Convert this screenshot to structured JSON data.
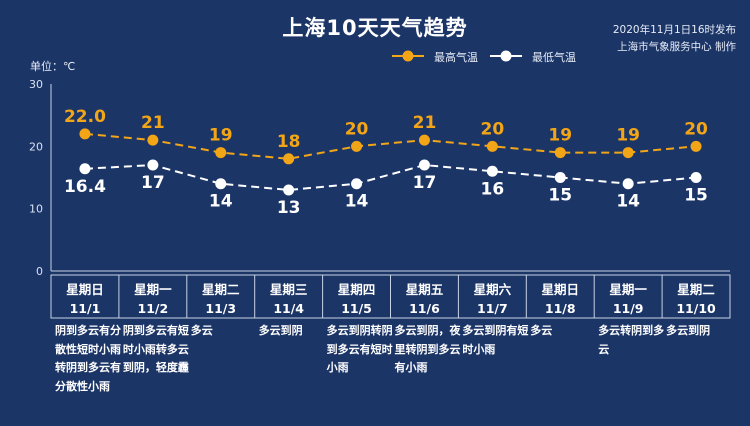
{
  "header": {
    "title": "上海10天天气趋势",
    "publish_line1": "2020年11月1日16时发布",
    "publish_line2": "上海市气象服务中心 制作"
  },
  "unit_label": "单位：℃",
  "legend": {
    "high": "最高气温",
    "low": "最低气温"
  },
  "colors": {
    "background": "#1c3567",
    "high": "#f2a516",
    "low": "#ffffff"
  },
  "chart_data": {
    "type": "line",
    "title": "上海10天天气趋势",
    "ylabel": "单位：℃",
    "ylim": [
      0,
      30
    ],
    "yticks": [
      "0",
      "10",
      "20",
      "30"
    ],
    "categories": [
      "11/1",
      "11/2",
      "11/3",
      "11/4",
      "11/5",
      "11/6",
      "11/7",
      "11/8",
      "11/9",
      "11/10"
    ],
    "weekdays": [
      "星期日",
      "星期一",
      "星期二",
      "星期三",
      "星期四",
      "星期五",
      "星期六",
      "星期日",
      "星期一",
      "星期二"
    ],
    "series": [
      {
        "name": "最高气温",
        "values": [
          22,
          21,
          19,
          18,
          20,
          21,
          20,
          19,
          19,
          20
        ],
        "labels": [
          "22.0",
          "21",
          "19",
          "18",
          "20",
          "21",
          "20",
          "19",
          "19",
          "20"
        ]
      },
      {
        "name": "最低气温",
        "values": [
          16.4,
          17,
          14,
          13,
          14,
          17,
          16,
          15,
          14,
          15
        ],
        "labels": [
          "16.4",
          "17",
          "14",
          "13",
          "14",
          "17",
          "16",
          "15",
          "14",
          "15"
        ]
      }
    ],
    "descriptions": [
      "阴到多云有分散性短时小雨转阴到多云有分散性小雨",
      "阴到多云有短时小雨转多云到阴，轻度霾",
      "多云",
      "多云到阴",
      "多云到阴转阴到多云有短时小雨",
      "多云到阴，夜里转阴到多云有小雨",
      "多云到阴有短时小雨",
      "多云",
      "多云转阴到多云",
      "多云到阴"
    ],
    "legend_position": "top",
    "grid": false
  }
}
